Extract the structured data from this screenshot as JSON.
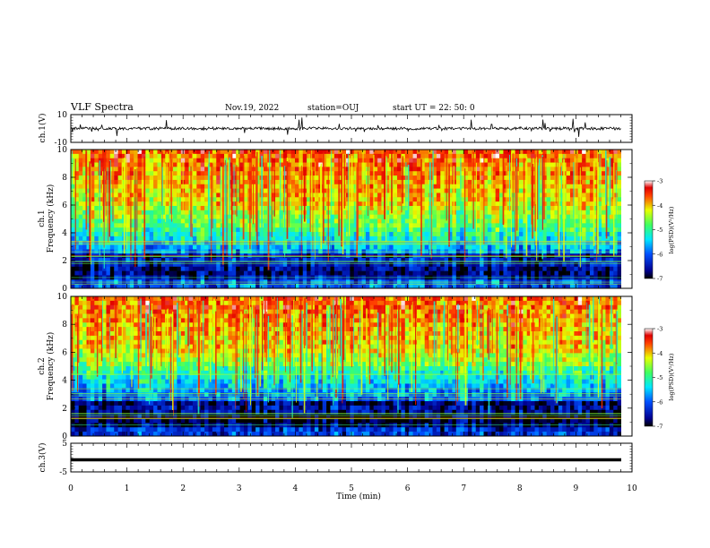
{
  "header": {
    "title": "VLF Spectra",
    "date": "Nov.19, 2022",
    "station": "station=OUJ",
    "start_ut": "start  UT =   22: 50: 0"
  },
  "chart_data": [
    {
      "type": "line",
      "name": "ch1-waveform",
      "ylabel": "ch.1(V)",
      "ylim": [
        -10,
        10
      ],
      "yticks": [
        {
          "v": 10,
          "label": "10"
        },
        {
          "v": -10,
          "label": "-10"
        }
      ],
      "xlim": [
        0,
        10
      ],
      "baseline": 0,
      "noise_amplitude": 1.0,
      "spike_amplitude_max": 8
    },
    {
      "type": "heatmap",
      "name": "ch1-spectrogram",
      "ylabel": "ch.1\nFrequency  (kHz)",
      "ylim": [
        0,
        10
      ],
      "yticks": [
        0,
        2,
        4,
        6,
        8,
        10
      ],
      "xlim": [
        0,
        9.85
      ],
      "colorbar": {
        "label": "log(PSD)(V²/Hz)",
        "range": [
          -7,
          -3
        ],
        "ticks": [
          -3,
          -4,
          -5,
          -6,
          -7
        ]
      }
    },
    {
      "type": "heatmap",
      "name": "ch2-spectrogram",
      "ylabel": "ch.2\nFrequency  (kHz)",
      "ylim": [
        0,
        10
      ],
      "yticks": [
        0,
        2,
        4,
        6,
        8,
        10
      ],
      "xlim": [
        0,
        9.85
      ],
      "colorbar": {
        "label": "log(PSD)(V²/Hz)",
        "range": [
          -7,
          -3
        ],
        "ticks": [
          -3,
          -4,
          -5,
          -6,
          -7
        ]
      }
    },
    {
      "type": "line",
      "name": "ch3-waveform",
      "ylabel": "ch.3(V)",
      "ylim": [
        -5,
        5
      ],
      "yticks": [
        {
          "v": 5,
          "label": "5"
        },
        {
          "v": -5,
          "label": "-5"
        }
      ],
      "xlim": [
        0,
        10
      ],
      "baseline": -0.8
    }
  ],
  "xaxis": {
    "label": "Time  (min)",
    "ticks": [
      0,
      1,
      2,
      3,
      4,
      5,
      6,
      7,
      8,
      9,
      10
    ]
  },
  "colorbar_ticks": [
    "-3",
    "-4",
    "-5",
    "-6",
    "-7"
  ],
  "colorbar_label": "log(PSD)(V²/Hz)"
}
